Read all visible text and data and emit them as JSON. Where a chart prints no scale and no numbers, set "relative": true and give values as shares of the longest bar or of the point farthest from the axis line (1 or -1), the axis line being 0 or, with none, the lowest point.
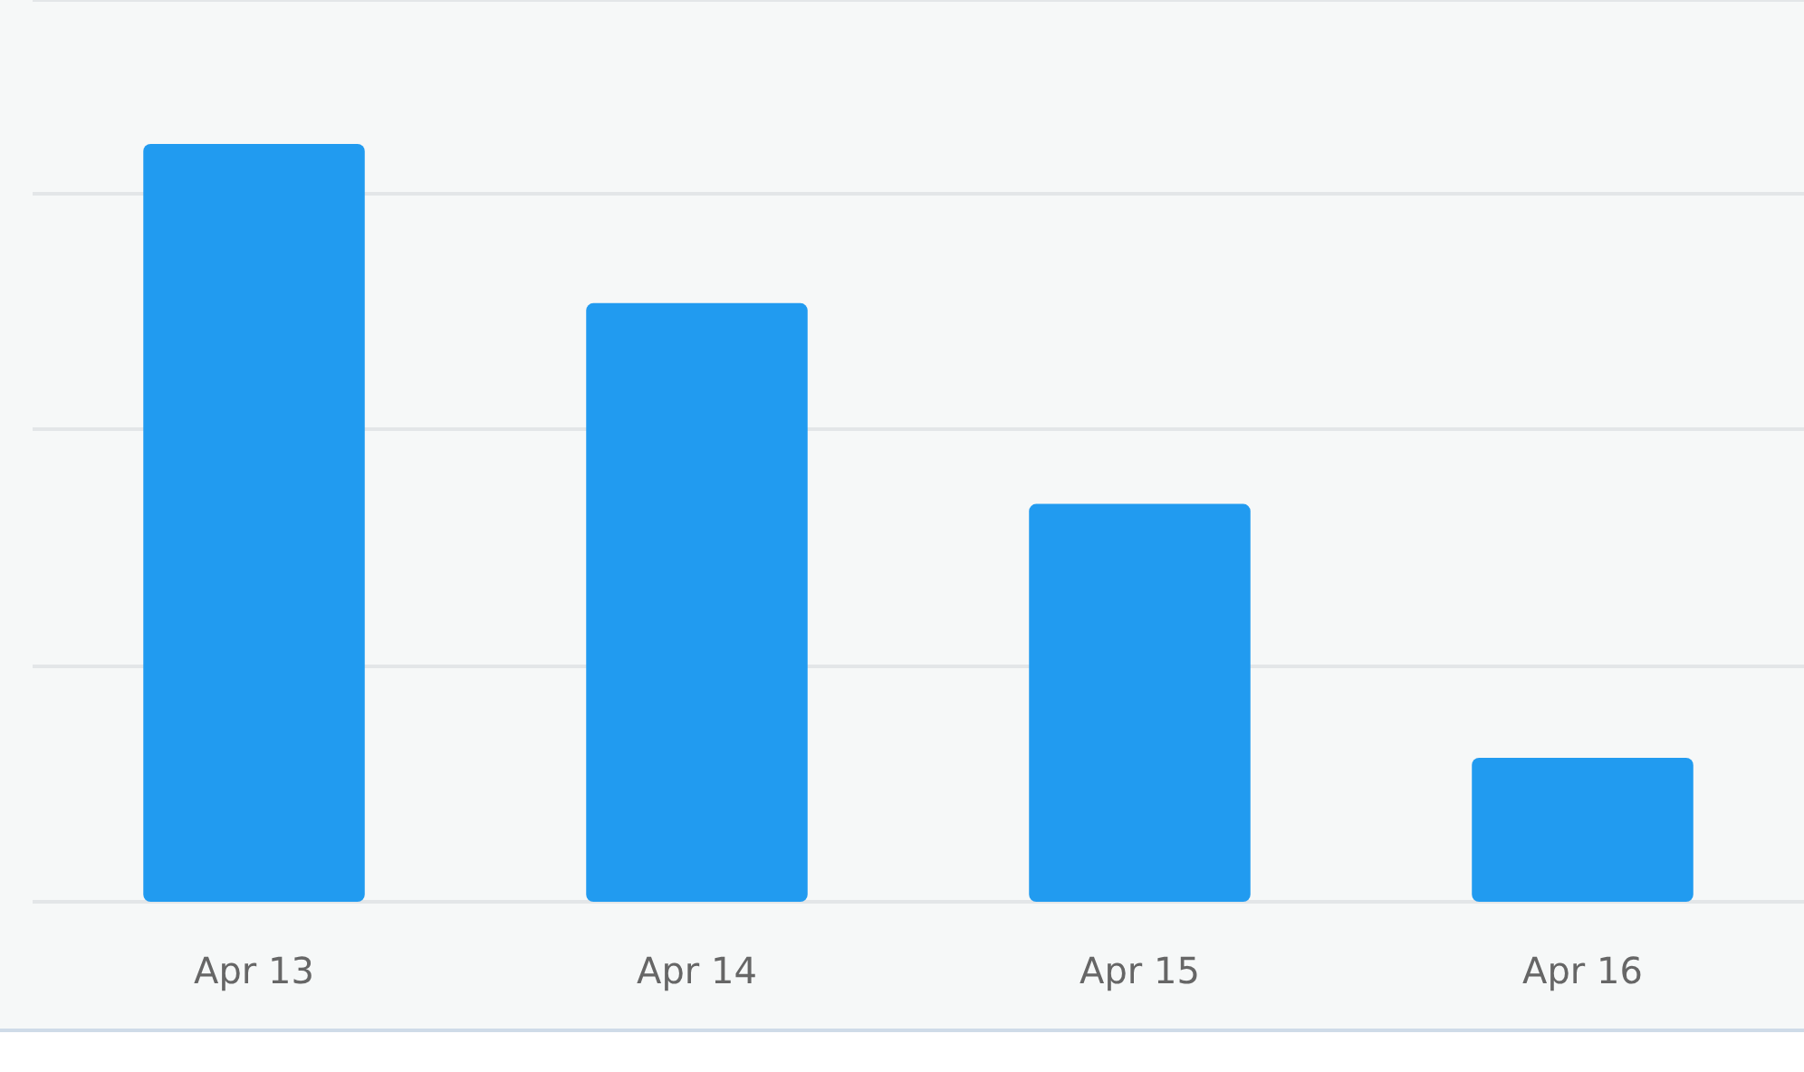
{
  "chart_data": {
    "type": "bar",
    "relative": true,
    "categories": [
      "Apr 13",
      "Apr 14",
      "Apr 15",
      "Apr 16"
    ],
    "values": [
      1,
      0.79,
      0.525,
      0.19
    ],
    "color": "#219bf0",
    "grid": "y"
  }
}
